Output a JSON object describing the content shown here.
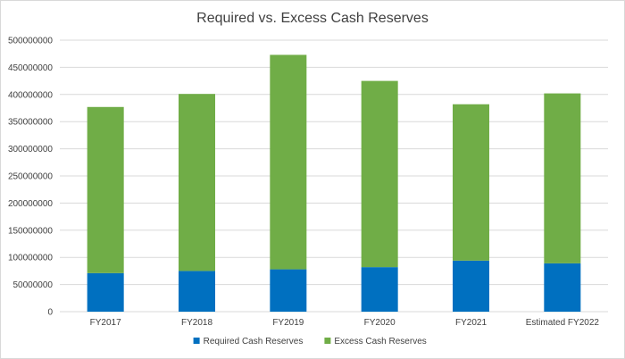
{
  "chart_data": {
    "type": "bar",
    "stacked": true,
    "title": "Required vs. Excess Cash Reserves",
    "xlabel": "",
    "ylabel": "",
    "categories": [
      "FY2017",
      "FY2018",
      "FY2019",
      "FY2020",
      "FY2021",
      "Estimated FY2022"
    ],
    "series": [
      {
        "name": "Required Cash Reserves",
        "color": "#0070c0",
        "values": [
          71000000,
          75000000,
          78000000,
          82000000,
          94000000,
          89000000
        ]
      },
      {
        "name": "Excess Cash Reserves",
        "color": "#70ad47",
        "values": [
          306000000,
          326000000,
          395000000,
          343000000,
          288000000,
          313000000
        ]
      }
    ],
    "ylim": [
      0,
      500000000
    ],
    "yticks": [
      "0",
      "50000000",
      "100000000",
      "150000000",
      "200000000",
      "250000000",
      "300000000",
      "350000000",
      "400000000",
      "450000000",
      "500000000"
    ],
    "grid": true,
    "gridline_color": "#d9d9d9",
    "legend_position": "bottom"
  }
}
